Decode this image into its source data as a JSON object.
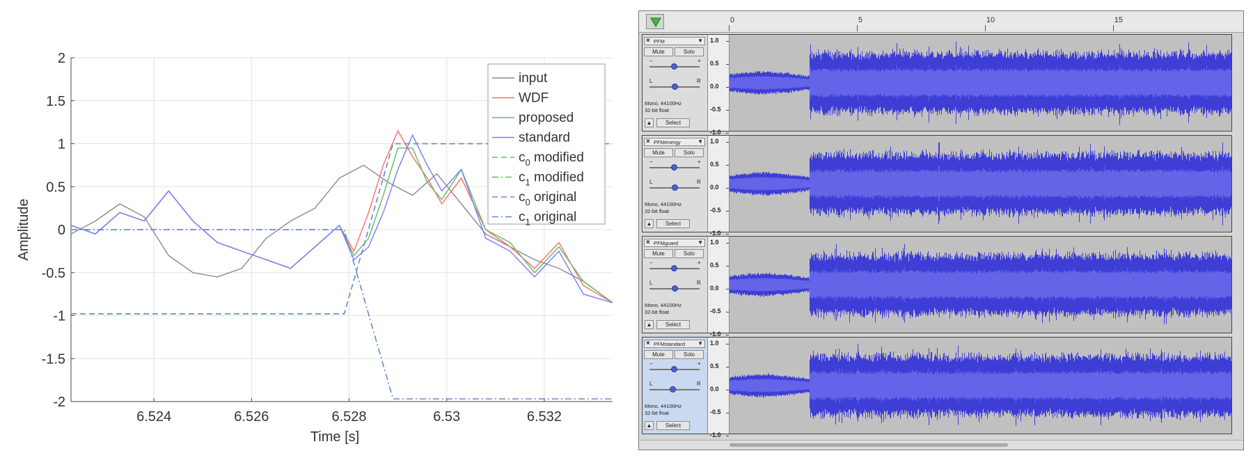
{
  "chart_data": {
    "type": "line",
    "title": "",
    "xlabel": "Time [s]",
    "ylabel": "Amplitude",
    "xlim": [
      6.5223,
      6.5334
    ],
    "ylim": [
      -2,
      2
    ],
    "xticks": [
      6.524,
      6.526,
      6.528,
      6.53,
      6.532
    ],
    "xtick_labels": [
      "6.524",
      "6.526",
      "6.528",
      "6.53",
      "6.532"
    ],
    "yticks": [
      -2,
      -1.5,
      -1,
      -0.5,
      0,
      0.5,
      1,
      1.5,
      2
    ],
    "ytick_labels": [
      "-2",
      "-1.5",
      "-1",
      "-0.5",
      "0",
      "0.5",
      "1",
      "1.5",
      "2"
    ],
    "grid": true,
    "legend_position": "top-right",
    "series": [
      {
        "name": "input",
        "color": "#8a8a8a",
        "style": "solid",
        "x": [
          6.5223,
          6.5228,
          6.5233,
          6.5238,
          6.5243,
          6.5248,
          6.5253,
          6.5258,
          6.5263,
          6.5268,
          6.5273,
          6.5278,
          6.5283,
          6.5288,
          6.5293,
          6.5298,
          6.5303,
          6.5308,
          6.5313,
          6.5318,
          6.5323,
          6.5328,
          6.5334
        ],
        "y": [
          -0.05,
          0.1,
          0.3,
          0.15,
          -0.3,
          -0.5,
          -0.55,
          -0.45,
          -0.1,
          0.1,
          0.25,
          0.6,
          0.75,
          0.55,
          0.4,
          0.65,
          0.3,
          -0.05,
          -0.2,
          -0.35,
          -0.45,
          -0.6,
          -0.85
        ]
      },
      {
        "name": "WDF",
        "color": "#ff6a6a",
        "style": "solid",
        "x": [
          6.5223,
          6.5228,
          6.5233,
          6.5238,
          6.5243,
          6.5248,
          6.5253,
          6.5258,
          6.5263,
          6.5268,
          6.5273,
          6.5278,
          6.5281,
          6.5284,
          6.5287,
          6.529,
          6.5293,
          6.5296,
          6.5299,
          6.5303,
          6.5308,
          6.5313,
          6.5318,
          6.5323,
          6.5328,
          6.5334
        ],
        "y": [
          0.05,
          -0.05,
          0.2,
          0.1,
          0.45,
          0.1,
          -0.15,
          -0.25,
          -0.35,
          -0.45,
          -0.2,
          0.05,
          -0.25,
          0.2,
          0.75,
          1.15,
          0.85,
          0.6,
          0.3,
          0.6,
          0.0,
          -0.2,
          -0.45,
          -0.15,
          -0.65,
          -0.85
        ]
      },
      {
        "name": "proposed",
        "color": "#5cc05c",
        "style": "solid",
        "x": [
          6.5223,
          6.5228,
          6.5233,
          6.5238,
          6.5243,
          6.5248,
          6.5253,
          6.5258,
          6.5263,
          6.5268,
          6.5273,
          6.5278,
          6.5281,
          6.5284,
          6.5287,
          6.529,
          6.5293,
          6.5296,
          6.5299,
          6.5303,
          6.5308,
          6.5313,
          6.5318,
          6.5323,
          6.5328,
          6.5334
        ],
        "y": [
          0.05,
          -0.05,
          0.2,
          0.1,
          0.45,
          0.1,
          -0.15,
          -0.25,
          -0.35,
          -0.45,
          -0.2,
          0.05,
          -0.3,
          -0.1,
          0.4,
          0.95,
          0.95,
          0.55,
          0.35,
          0.7,
          0.0,
          -0.15,
          -0.5,
          -0.2,
          -0.6,
          -0.85
        ]
      },
      {
        "name": "standard",
        "color": "#7a7aff",
        "style": "solid",
        "x": [
          6.5223,
          6.5228,
          6.5233,
          6.5238,
          6.5243,
          6.5248,
          6.5253,
          6.5258,
          6.5263,
          6.5268,
          6.5273,
          6.5278,
          6.5281,
          6.5284,
          6.5287,
          6.529,
          6.5293,
          6.5296,
          6.5299,
          6.5303,
          6.5308,
          6.5313,
          6.5318,
          6.5323,
          6.5328,
          6.5334
        ],
        "y": [
          0.05,
          -0.05,
          0.2,
          0.1,
          0.45,
          0.1,
          -0.15,
          -0.25,
          -0.35,
          -0.45,
          -0.2,
          0.05,
          -0.35,
          -0.2,
          0.2,
          0.7,
          1.1,
          0.75,
          0.45,
          0.7,
          -0.1,
          -0.25,
          -0.55,
          -0.25,
          -0.75,
          -0.85
        ]
      },
      {
        "name": "c0 modified",
        "color": "#5cc05c",
        "style": "dashed",
        "x": [
          6.5223,
          6.5279,
          6.5289,
          6.5334
        ],
        "y": [
          -0.98,
          -0.98,
          1.0,
          1.0
        ]
      },
      {
        "name": "c1 modified",
        "color": "#5cc05c",
        "style": "dashdot",
        "x": [
          6.5223,
          6.5279,
          6.5289,
          6.5334
        ],
        "y": [
          0.0,
          0.0,
          -1.97,
          -1.97
        ]
      },
      {
        "name": "c0 original",
        "color": "#6a86d8",
        "style": "dashed",
        "x": [
          6.5223,
          6.5279,
          6.5289,
          6.5334
        ],
        "y": [
          -0.98,
          -0.98,
          1.0,
          1.0
        ]
      },
      {
        "name": "c1 original",
        "color": "#6a86d8",
        "style": "dashdot",
        "x": [
          6.5223,
          6.5279,
          6.5289,
          6.5334
        ],
        "y": [
          0.0,
          0.0,
          -1.97,
          -1.97
        ]
      }
    ],
    "legend": [
      {
        "base": "input",
        "sub": "",
        "rest": ""
      },
      {
        "base": "WDF",
        "sub": "",
        "rest": ""
      },
      {
        "base": "proposed",
        "sub": "",
        "rest": ""
      },
      {
        "base": "standard",
        "sub": "",
        "rest": ""
      },
      {
        "base": "c",
        "sub": "0",
        "rest": " modified"
      },
      {
        "base": "c",
        "sub": "1",
        "rest": " modified"
      },
      {
        "base": "c",
        "sub": "0",
        "rest": " original"
      },
      {
        "base": "c",
        "sub": "1",
        "rest": " original"
      }
    ]
  },
  "editor": {
    "ruler": {
      "labels": [
        "0",
        "5",
        "10",
        "15"
      ],
      "seconds": [
        0,
        5,
        10,
        15
      ],
      "max_seconds": 19.6
    },
    "play_icon": "play-triangle-icon",
    "tracks": [
      {
        "name": "PFM",
        "mute": "Mute",
        "solo": "Solo",
        "gain_minus": "−",
        "gain_plus": "+",
        "pan_left": "L",
        "pan_right": "R",
        "info_line1": "Mono, 44100Hz",
        "info_line2": "32-bit float",
        "select": "Select",
        "ruler": [
          "1.0",
          "0.5",
          "0.0",
          "-0.5",
          "-1.0"
        ],
        "selected": false
      },
      {
        "name": "PFMenergy",
        "mute": "Mute",
        "solo": "Solo",
        "gain_minus": "−",
        "gain_plus": "+",
        "pan_left": "L",
        "pan_right": "R",
        "info_line1": "Mono, 44100Hz",
        "info_line2": "32-bit float",
        "select": "Select",
        "ruler": [
          "1.0",
          "0.5",
          "0.0",
          "-0.5",
          "-1.0"
        ],
        "selected": false
      },
      {
        "name": "PFMguard",
        "mute": "Mute",
        "solo": "Solo",
        "gain_minus": "−",
        "gain_plus": "+",
        "pan_left": "L",
        "pan_right": "R",
        "info_line1": "Mono, 44100Hz",
        "info_line2": "32-bit float",
        "select": "Select",
        "ruler": [
          "1.0",
          "0.5",
          "0.0",
          "-0.5",
          "-1.0"
        ],
        "selected": false
      },
      {
        "name": "PFMstandard",
        "mute": "Mute",
        "solo": "Solo",
        "gain_minus": "−",
        "gain_plus": "+",
        "pan_left": "L",
        "pan_right": "R",
        "info_line1": "Mono, 44100Hz",
        "info_line2": "32-bit float",
        "select": "Select",
        "ruler": [
          "1.0",
          "0.5",
          "0.0",
          "-0.5",
          "-1.0"
        ],
        "selected": true
      }
    ],
    "waveform_color": "#3e3ed6",
    "waveform_inner_color": "#6464e8",
    "background_color": "#c0c0c0"
  }
}
